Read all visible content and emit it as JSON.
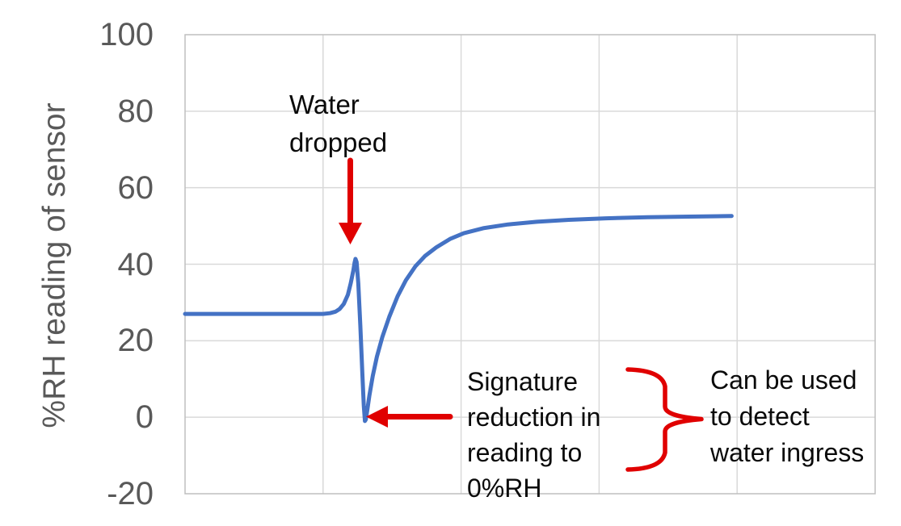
{
  "colors": {
    "line_blue": "#4472c4",
    "annotation_red": "#e00000",
    "gridline_gray": "#d9d9d9",
    "plot_border_gray": "#bfbfbf",
    "axis_text_gray": "#595959",
    "annotation_text": "#0a0a0a",
    "background": "#ffffff"
  },
  "chart_data": {
    "type": "line",
    "title": "",
    "xlabel": "",
    "ylabel": "%RH reading of sensor",
    "xlim": [
      0,
      5
    ],
    "ylim": [
      -20,
      100
    ],
    "yticks": [
      100,
      80,
      60,
      40,
      20,
      0,
      -20
    ],
    "xgrid_positions": [
      1,
      2,
      3,
      4
    ],
    "x_tick_labels": [],
    "grid": true,
    "legend": "none",
    "key_values": {
      "baseline_rh": 27,
      "spike_peak_rh": 41.5,
      "dip_min_rh": -1,
      "recovery_plateau_rh": 52.6
    },
    "series": [
      {
        "name": "%RH reading of sensor",
        "color": "#4472c4",
        "points": [
          [
            0.0,
            27.0
          ],
          [
            0.4,
            27.0
          ],
          [
            0.8,
            27.0
          ],
          [
            1.0,
            27.0
          ],
          [
            1.05,
            27.2
          ],
          [
            1.09,
            27.6
          ],
          [
            1.12,
            28.3
          ],
          [
            1.15,
            29.6
          ],
          [
            1.18,
            32.0
          ],
          [
            1.2,
            35.0
          ],
          [
            1.22,
            38.5
          ],
          [
            1.228,
            40.3
          ],
          [
            1.235,
            41.4
          ],
          [
            1.243,
            40.6
          ],
          [
            1.255,
            35.0
          ],
          [
            1.27,
            24.0
          ],
          [
            1.285,
            11.0
          ],
          [
            1.295,
            3.0
          ],
          [
            1.303,
            -1.0
          ],
          [
            1.31,
            -0.6
          ],
          [
            1.32,
            1.8
          ],
          [
            1.335,
            5.5
          ],
          [
            1.36,
            10.8
          ],
          [
            1.39,
            15.8
          ],
          [
            1.43,
            21.0
          ],
          [
            1.48,
            26.3
          ],
          [
            1.54,
            31.6
          ],
          [
            1.6,
            35.8
          ],
          [
            1.67,
            39.5
          ],
          [
            1.74,
            42.2
          ],
          [
            1.82,
            44.4
          ],
          [
            1.92,
            46.6
          ],
          [
            2.02,
            48.1
          ],
          [
            2.16,
            49.4
          ],
          [
            2.34,
            50.4
          ],
          [
            2.55,
            51.1
          ],
          [
            2.78,
            51.6
          ],
          [
            3.05,
            52.0
          ],
          [
            3.35,
            52.3
          ],
          [
            3.65,
            52.45
          ],
          [
            3.96,
            52.6
          ]
        ]
      }
    ],
    "annotations": [
      {
        "text": "Water dropped",
        "arrow": "down",
        "points_to": "spike peak at ~41 %RH"
      },
      {
        "text": "Signature reduction in reading to 0%RH",
        "arrow": "left",
        "points_to": "dip touching 0 %RH"
      },
      {
        "text": "Can be used to detect water ingress",
        "linked_by": "curly brace"
      }
    ]
  },
  "axis": {
    "y_title": "%RH reading of sensor"
  },
  "annotations": {
    "water_dropped": "Water\ndropped",
    "signature_reduction": "Signature\nreduction in\nreading to\n0%RH",
    "can_be_used": "Can be used\nto detect\nwater ingress"
  }
}
